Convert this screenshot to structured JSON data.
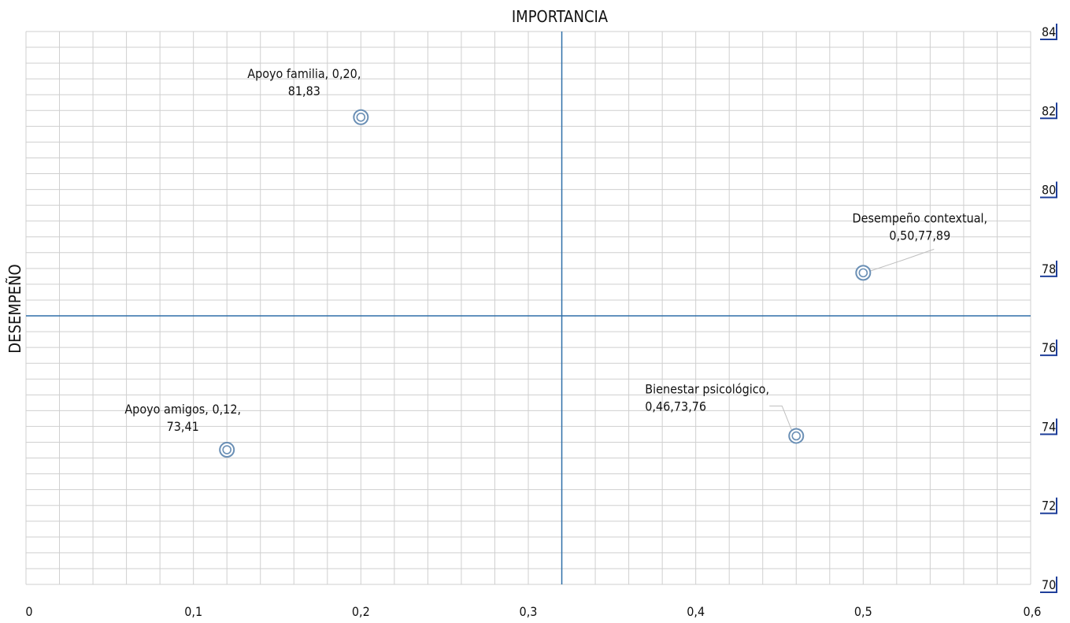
{
  "chart_data": {
    "type": "scatter",
    "title": "IMPORTANCIA",
    "ylabel": "DESEMPEÑO",
    "xlim": [
      0,
      0.6
    ],
    "ylim": [
      70,
      84
    ],
    "x_ticks": [
      "0",
      "0,1",
      "0,2",
      "0,3",
      "0,4",
      "0,5",
      "0,6"
    ],
    "y_ticks": [
      "70",
      "72",
      "74",
      "76",
      "78",
      "80",
      "82",
      "84"
    ],
    "y_axis_position": "right",
    "grid": true,
    "quadrant_lines": {
      "x": 0.32,
      "y": 76.8
    },
    "colors": {
      "marker": "#6a8fb5",
      "quadrant": "#2f6fa8",
      "grid": "#cfcfcf",
      "ytick_accent": "#1f3f9a"
    },
    "points": [
      {
        "x": 0.2,
        "y": 81.83,
        "label_lines": [
          "Apoyo familia, 0,20,",
          "81,83"
        ]
      },
      {
        "x": 0.5,
        "y": 77.89,
        "label_lines": [
          "Desempeño contextual,",
          "0,50,77,89"
        ]
      },
      {
        "x": 0.12,
        "y": 73.41,
        "label_lines": [
          "Apoyo amigos, 0,12,",
          "73,41"
        ]
      },
      {
        "x": 0.46,
        "y": 73.76,
        "label_lines": [
          "Bienestar psicológico,",
          "0,46,73,76"
        ]
      }
    ]
  }
}
